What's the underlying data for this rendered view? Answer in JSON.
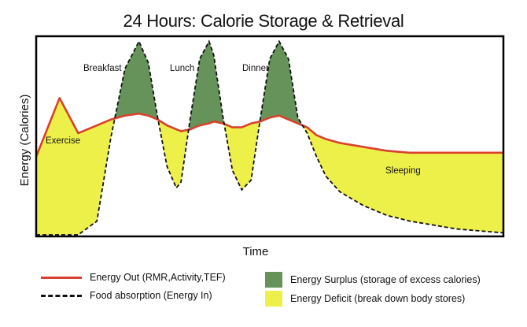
{
  "chart_data": {
    "type": "area",
    "title": "24 Hours: Calorie Storage & Retrieval",
    "xlabel": "Time",
    "ylabel": "Energy (Calories)",
    "annotations": [
      "Exercise",
      "Breakfast",
      "Lunch",
      "Dinner",
      "Sleeping"
    ],
    "x": [
      0.0,
      0.05,
      0.09,
      0.13,
      0.16,
      0.19,
      0.22,
      0.24,
      0.26,
      0.28,
      0.3,
      0.31,
      0.33,
      0.35,
      0.37,
      0.38,
      0.4,
      0.42,
      0.44,
      0.46,
      0.48,
      0.5,
      0.52,
      0.54,
      0.56,
      0.58,
      0.6,
      0.62,
      0.65,
      0.7,
      0.75,
      0.8,
      0.85,
      0.9,
      0.95,
      1.0
    ],
    "ylim": [
      0,
      1
    ],
    "series": [
      {
        "name": "Energy Out (RMR,Activity,TEF)",
        "color": "#d9412c",
        "values": [
          0.4,
          0.7,
          0.52,
          0.56,
          0.59,
          0.61,
          0.62,
          0.61,
          0.59,
          0.56,
          0.54,
          0.53,
          0.54,
          0.56,
          0.57,
          0.58,
          0.57,
          0.55,
          0.55,
          0.57,
          0.58,
          0.6,
          0.61,
          0.59,
          0.57,
          0.55,
          0.51,
          0.49,
          0.47,
          0.45,
          0.43,
          0.42,
          0.42,
          0.42,
          0.42,
          0.42
        ]
      },
      {
        "name": "Food absorption (Energy In)",
        "color": "#111111",
        "values": [
          0.0,
          0.0,
          0.0,
          0.07,
          0.5,
          0.85,
          0.99,
          0.88,
          0.6,
          0.35,
          0.24,
          0.27,
          0.6,
          0.9,
          0.99,
          0.92,
          0.6,
          0.33,
          0.23,
          0.28,
          0.6,
          0.9,
          0.99,
          0.9,
          0.6,
          0.52,
          0.4,
          0.3,
          0.22,
          0.15,
          0.1,
          0.07,
          0.05,
          0.03,
          0.02,
          0.01
        ]
      }
    ],
    "fills": [
      {
        "name": "Energy Surplus (storage of excess calories)",
        "color": "#66935a"
      },
      {
        "name": "Energy Deficit (break down body stores)",
        "color": "#eef04a"
      }
    ],
    "grid": false
  }
}
